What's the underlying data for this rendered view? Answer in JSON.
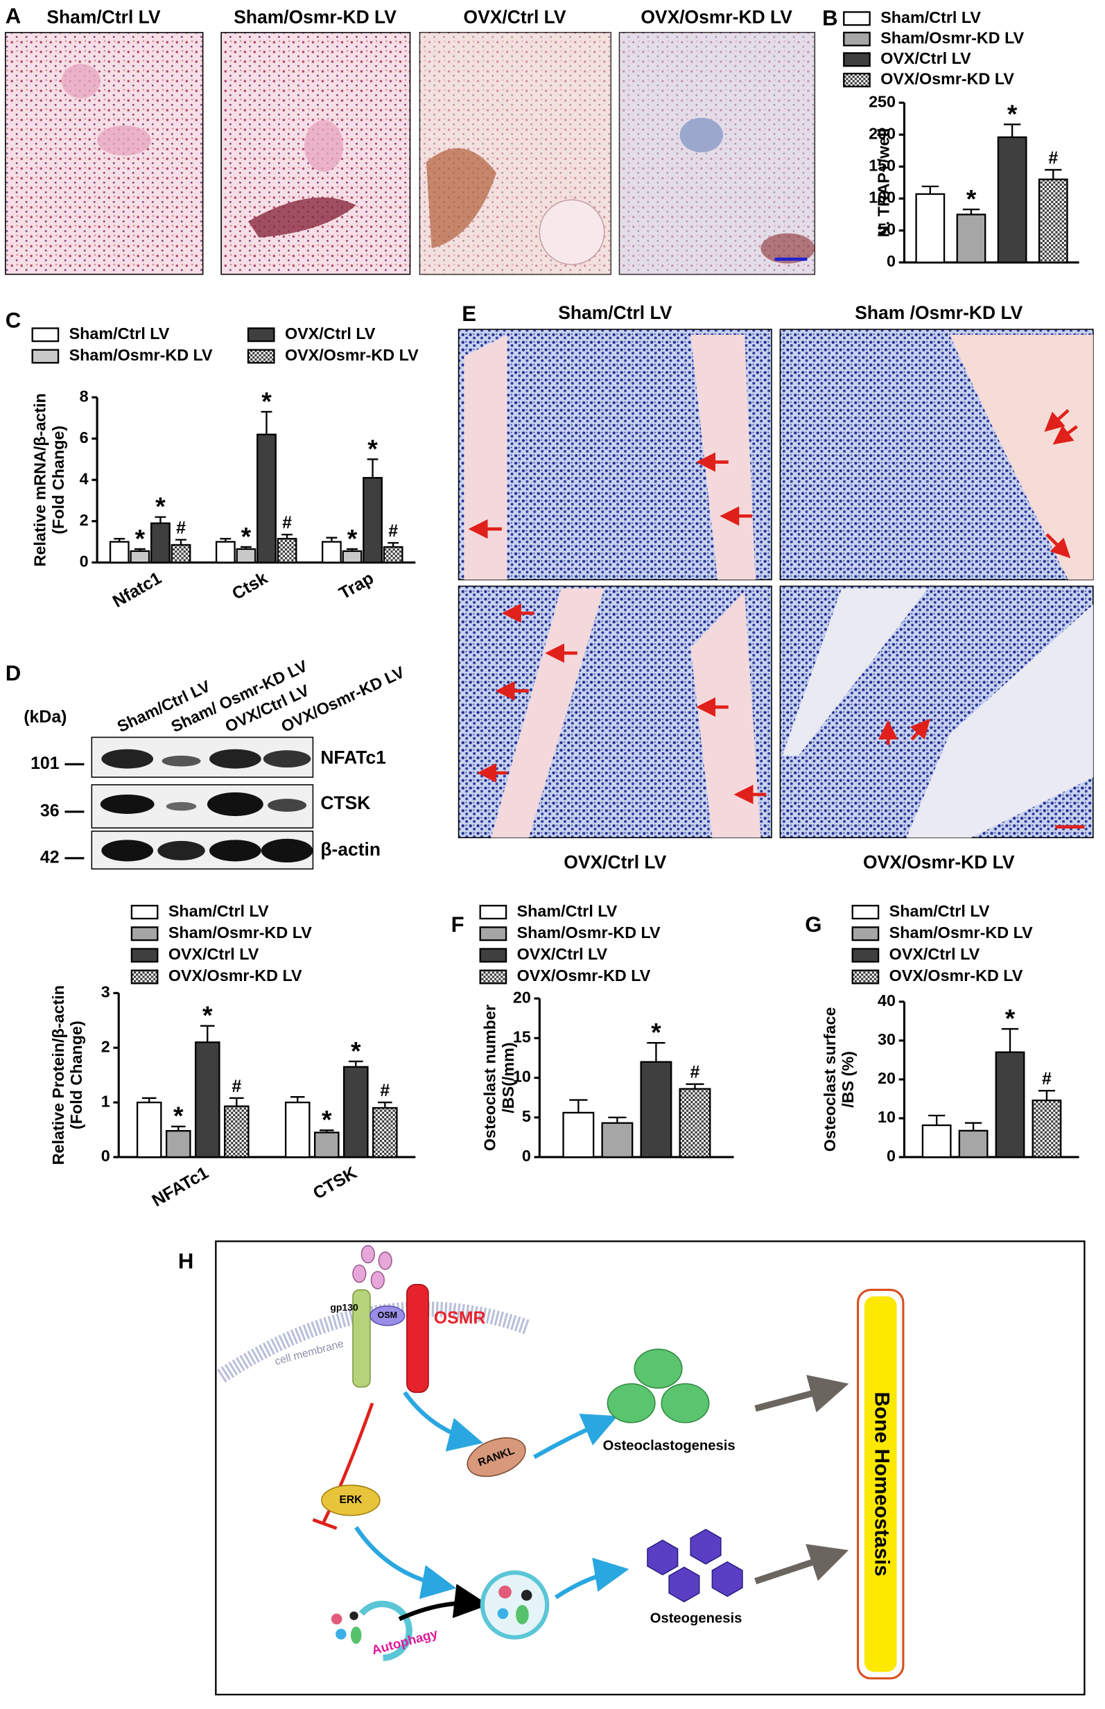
{
  "letters": [
    "A",
    "B",
    "C",
    "D",
    "E",
    "F",
    "G",
    "H"
  ],
  "panel_a": {
    "titles": [
      "Sham/Ctrl LV",
      "Sham/Osmr-KD LV",
      "OVX/Ctrl LV",
      "OVX/Osmr-KD LV"
    ]
  },
  "panel_d_blot": {
    "lanes": [
      "Sham/Ctrl LV",
      "Sham/ Osmr-KD LV",
      "OVX/Ctrl LV",
      "OVX/Osmr-KD LV"
    ],
    "unit": "(kDa)",
    "markers": [
      "101",
      "36",
      "42"
    ],
    "proteins": [
      "NFATc1",
      "CTSK",
      "β-actin"
    ]
  },
  "panel_e": {
    "titles": [
      "Sham/Ctrl LV",
      "Sham /Osmr-KD LV",
      "OVX/Ctrl LV",
      "OVX/Osmr-KD LV"
    ]
  },
  "panel_h": {
    "gp130": "gp130",
    "osm": "OSM",
    "osmr": "OSMR",
    "membrane": "cell membrane",
    "rankl": "RANKL",
    "erk": "ERK",
    "osteoclastogenesis": "Osteoclastogenesis",
    "osteogenesis": "Osteogenesis",
    "autophagy": "Autophagy",
    "outcome": "Bone Homeostasis"
  },
  "chart_data": [
    {
      "type": "bar",
      "ylabel": [
        "N. TRAP+/well"
      ],
      "categories": [
        null
      ],
      "ylim": [
        0,
        250
      ],
      "yticks": [
        0,
        50,
        100,
        150,
        200,
        250
      ],
      "series": [
        {
          "name": "Sham/Ctrl LV",
          "color": "#ffffff",
          "values": [
            107
          ],
          "errors": [
            12
          ],
          "annotations": [
            null
          ]
        },
        {
          "name": "Sham/Osmr-KD LV",
          "color": "#a6a6a6",
          "values": [
            75
          ],
          "errors": [
            8
          ],
          "annotations": [
            "*"
          ]
        },
        {
          "name": "OVX/Ctrl LV",
          "color": "#3f3f3f",
          "values": [
            196
          ],
          "errors": [
            20
          ],
          "annotations": [
            "*"
          ]
        },
        {
          "name": "OVX/Osmr-KD LV",
          "color": "#7f7f7f",
          "pattern": "checker",
          "values": [
            130
          ],
          "errors": [
            15
          ],
          "annotations": [
            "#"
          ]
        }
      ]
    },
    {
      "type": "bar",
      "ylabel": [
        "Relative mRNA/β-actin",
        "(Fold Change)"
      ],
      "categories": [
        "Nfatc1",
        "Ctsk",
        "Trap"
      ],
      "ylim": [
        0,
        8
      ],
      "yticks": [
        0,
        2,
        4,
        6,
        8
      ],
      "series": [
        {
          "name": "Sham/Ctrl LV",
          "color": "#ffffff",
          "values": [
            1.0,
            1.0,
            1.0
          ],
          "errors": [
            0.15,
            0.15,
            0.2
          ],
          "annotations": [
            null,
            null,
            null
          ]
        },
        {
          "name": "Sham/Osmr-KD LV",
          "color": "#c8c8c8",
          "values": [
            0.55,
            0.65,
            0.55
          ],
          "errors": [
            0.1,
            0.1,
            0.1
          ],
          "annotations": [
            "*",
            "*",
            "*"
          ]
        },
        {
          "name": "OVX/Ctrl LV",
          "color": "#3f3f3f",
          "values": [
            1.9,
            6.2,
            4.1
          ],
          "errors": [
            0.3,
            1.1,
            0.9
          ],
          "annotations": [
            "*",
            "*",
            "*"
          ]
        },
        {
          "name": "OVX/Osmr-KD LV",
          "color": "#7f7f7f",
          "pattern": "checker",
          "values": [
            0.85,
            1.15,
            0.75
          ],
          "errors": [
            0.25,
            0.2,
            0.2
          ],
          "annotations": [
            "#",
            "#",
            "#"
          ]
        }
      ]
    },
    {
      "type": "bar",
      "ylabel": [
        "Relative Protein/β-actin",
        "(Fold Change)"
      ],
      "categories": [
        "NFATc1",
        "CTSK"
      ],
      "ylim": [
        0,
        3
      ],
      "yticks": [
        0,
        1,
        2,
        3
      ],
      "series": [
        {
          "name": "Sham/Ctrl LV",
          "color": "#ffffff",
          "values": [
            1.0,
            1.0
          ],
          "errors": [
            0.08,
            0.1
          ],
          "annotations": [
            null,
            null
          ]
        },
        {
          "name": "Sham/Osmr-KD LV",
          "color": "#a6a6a6",
          "values": [
            0.48,
            0.45
          ],
          "errors": [
            0.08,
            0.04
          ],
          "annotations": [
            "*",
            "*"
          ]
        },
        {
          "name": "OVX/Ctrl LV",
          "color": "#3f3f3f",
          "values": [
            2.1,
            1.65
          ],
          "errors": [
            0.3,
            0.1
          ],
          "annotations": [
            "*",
            "*"
          ]
        },
        {
          "name": "OVX/Osmr-KD LV",
          "color": "#7f7f7f",
          "pattern": "checker",
          "values": [
            0.93,
            0.9
          ],
          "errors": [
            0.15,
            0.1
          ],
          "annotations": [
            "#",
            "#"
          ]
        }
      ]
    },
    {
      "type": "bar",
      "ylabel": [
        "Osteoclast number",
        "/BS(/mm)"
      ],
      "categories": [
        null
      ],
      "ylim": [
        0,
        20
      ],
      "yticks": [
        0,
        5,
        10,
        15,
        20
      ],
      "series": [
        {
          "name": "Sham/Ctrl LV",
          "color": "#ffffff",
          "values": [
            5.6
          ],
          "errors": [
            1.6
          ],
          "annotations": [
            null
          ]
        },
        {
          "name": "Sham/Osmr-KD LV",
          "color": "#a6a6a6",
          "values": [
            4.3
          ],
          "errors": [
            0.7
          ],
          "annotations": [
            null
          ]
        },
        {
          "name": "OVX/Ctrl LV",
          "color": "#3f3f3f",
          "values": [
            12
          ],
          "errors": [
            2.4
          ],
          "annotations": [
            "*"
          ]
        },
        {
          "name": "OVX/Osmr-KD LV",
          "color": "#7f7f7f",
          "pattern": "checker",
          "values": [
            8.6
          ],
          "errors": [
            0.6
          ],
          "annotations": [
            "#"
          ]
        }
      ]
    },
    {
      "type": "bar",
      "ylabel": [
        "Osteoclast surface",
        "/BS (%)"
      ],
      "categories": [
        null
      ],
      "ylim": [
        0,
        40
      ],
      "yticks": [
        0,
        10,
        20,
        30,
        40
      ],
      "series": [
        {
          "name": "Sham/Ctrl LV",
          "color": "#ffffff",
          "values": [
            8.2
          ],
          "errors": [
            2.5
          ],
          "annotations": [
            null
          ]
        },
        {
          "name": "Sham/Osmr-KD LV",
          "color": "#a6a6a6",
          "values": [
            6.8
          ],
          "errors": [
            2
          ],
          "annotations": [
            null
          ]
        },
        {
          "name": "OVX/Ctrl LV",
          "color": "#3f3f3f",
          "values": [
            27
          ],
          "errors": [
            6
          ],
          "annotations": [
            "*"
          ]
        },
        {
          "name": "OVX/Osmr-KD LV",
          "color": "#7f7f7f",
          "pattern": "checker",
          "values": [
            14.6
          ],
          "errors": [
            2.5
          ],
          "annotations": [
            "#"
          ]
        }
      ]
    }
  ]
}
